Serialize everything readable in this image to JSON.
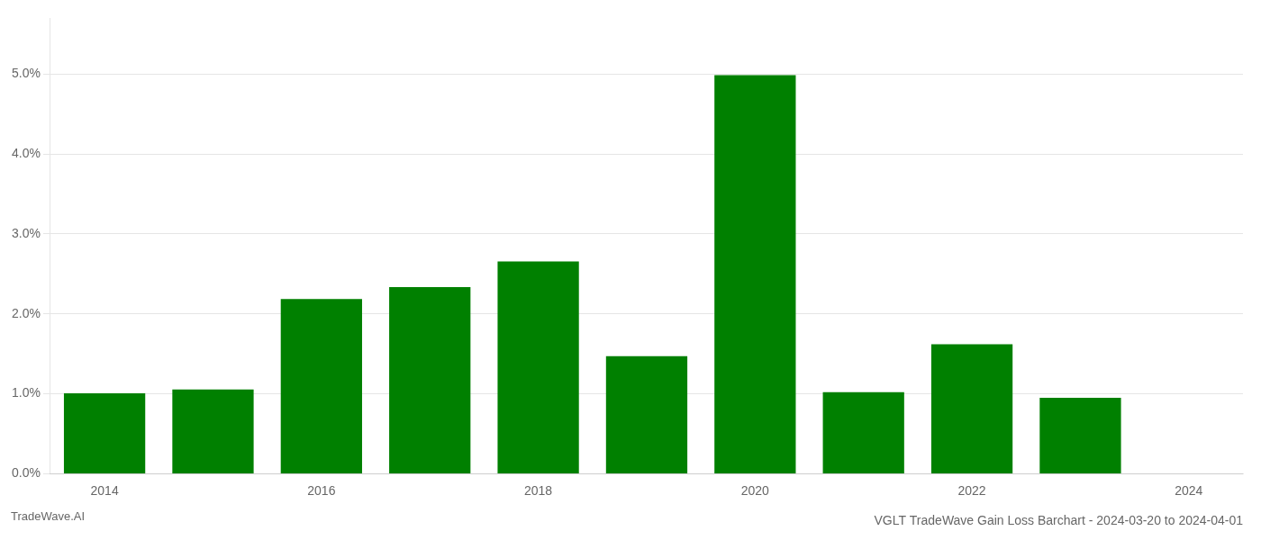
{
  "chart_data": {
    "type": "bar",
    "title": "VGLT TradeWave Gain Loss Barchart - 2024-03-20 to 2024-04-01",
    "annotations": [
      "TradeWave.AI"
    ],
    "categories": [
      "2014",
      null,
      "2016",
      null,
      "2018",
      null,
      "2020",
      null,
      "2022",
      null,
      "2024"
    ],
    "values": [
      0.01005,
      0.01055,
      0.02185,
      0.02335,
      0.02655,
      0.0147,
      0.04985,
      0.0102,
      0.0162,
      0.0095,
      0.0
    ],
    "color": "#008000",
    "ylim": [
      0.0,
      0.057
    ],
    "yticks": [
      {
        "value": 0.0,
        "label": "0.0%"
      },
      {
        "value": 0.01,
        "label": "1.0%"
      },
      {
        "value": 0.02,
        "label": "2.0%"
      },
      {
        "value": 0.03,
        "label": "3.0%"
      },
      {
        "value": 0.04,
        "label": "4.0%"
      },
      {
        "value": 0.05,
        "label": "5.0%"
      }
    ],
    "grid": true
  }
}
